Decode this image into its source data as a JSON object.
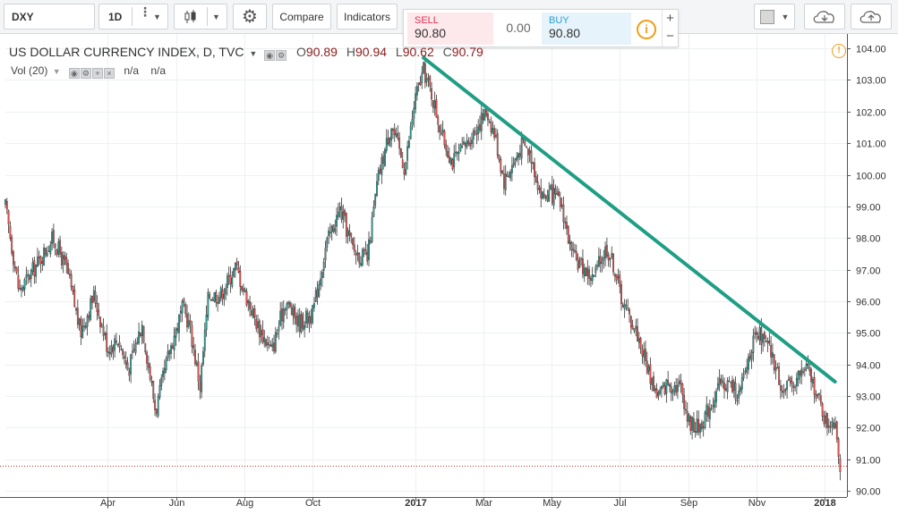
{
  "toolbar": {
    "symbol": "DXY",
    "interval": "1D",
    "compare_label": "Compare",
    "indicators_label": "Indicators"
  },
  "trade": {
    "sell_label": "SELL",
    "sell_price": "90.80",
    "spread": "0.00",
    "buy_label": "BUY",
    "buy_price": "90.80",
    "plus": "+",
    "minus": "−",
    "info": "i"
  },
  "legend": {
    "title": "US DOLLAR CURRENCY INDEX, D, TVC",
    "o_key": "O",
    "o_val": "90.89",
    "h_key": "H",
    "h_val": "90.94",
    "l_key": "L",
    "l_val": "90.62",
    "c_key": "C",
    "c_val": "90.79",
    "vol_label": "Vol (20)",
    "na1": "n/a",
    "na2": "n/a",
    "alert": "!"
  },
  "colors": {
    "up": "#26a69a",
    "down": "#ef5350",
    "wick": "#333333",
    "trendline": "#1f9e84",
    "price_line": "#c03030"
  },
  "chart_data": {
    "type": "candlestick",
    "title": "US DOLLAR CURRENCY INDEX, D, TVC",
    "y_ticks": [
      "104.00",
      "103.00",
      "102.00",
      "101.00",
      "100.00",
      "99.00",
      "98.00",
      "97.00",
      "96.00",
      "95.00",
      "94.00",
      "93.00",
      "92.00",
      "91.00",
      "90.00"
    ],
    "ylim": [
      89.8,
      104.4
    ],
    "x_ticks": [
      {
        "label": "Apr",
        "month": 3
      },
      {
        "label": "Jun",
        "month": 5
      },
      {
        "label": "Aug",
        "month": 7
      },
      {
        "label": "Oct",
        "month": 9
      },
      {
        "label": "2017",
        "month": 12,
        "bold": true
      },
      {
        "label": "Mar",
        "month": 14
      },
      {
        "label": "May",
        "month": 16
      },
      {
        "label": "Jul",
        "month": 18
      },
      {
        "label": "Sep",
        "month": 20
      },
      {
        "label": "Nov",
        "month": 22
      },
      {
        "label": "2018",
        "month": 24,
        "bold": true
      }
    ],
    "x_range_months": [
      0.0,
      24.65
    ],
    "last_price": 90.79,
    "trendline": {
      "from": [
        12.25,
        103.7
      ],
      "to": [
        24.3,
        93.45
      ]
    },
    "path_keypoints": [
      [
        0.0,
        99.0
      ],
      [
        0.4,
        96.3
      ],
      [
        1.0,
        97.3
      ],
      [
        1.4,
        98.0
      ],
      [
        1.8,
        97.0
      ],
      [
        2.2,
        95.0
      ],
      [
        2.6,
        96.2
      ],
      [
        3.0,
        94.5
      ],
      [
        3.3,
        94.8
      ],
      [
        3.6,
        93.8
      ],
      [
        4.0,
        95.3
      ],
      [
        4.4,
        92.5
      ],
      [
        4.8,
        94.4
      ],
      [
        5.2,
        95.8
      ],
      [
        5.4,
        95.2
      ],
      [
        5.7,
        93.3
      ],
      [
        5.95,
        96.2
      ],
      [
        6.3,
        96.2
      ],
      [
        6.75,
        97.1
      ],
      [
        7.0,
        96.3
      ],
      [
        7.4,
        95.2
      ],
      [
        7.8,
        94.4
      ],
      [
        8.2,
        96.0
      ],
      [
        8.6,
        95.3
      ],
      [
        9.0,
        95.6
      ],
      [
        9.4,
        97.8
      ],
      [
        9.8,
        98.9
      ],
      [
        10.2,
        97.6
      ],
      [
        10.6,
        97.3
      ],
      [
        10.9,
        99.8
      ],
      [
        11.3,
        101.6
      ],
      [
        11.7,
        100.2
      ],
      [
        12.0,
        102.4
      ],
      [
        12.25,
        103.3
      ],
      [
        12.5,
        102.5
      ],
      [
        12.8,
        101.2
      ],
      [
        13.1,
        100.4
      ],
      [
        13.4,
        100.8
      ],
      [
        13.8,
        101.5
      ],
      [
        14.1,
        102.0
      ],
      [
        14.35,
        101.2
      ],
      [
        14.6,
        99.8
      ],
      [
        14.9,
        100.4
      ],
      [
        15.15,
        101.0
      ],
      [
        15.4,
        100.6
      ],
      [
        15.7,
        99.3
      ],
      [
        16.0,
        99.4
      ],
      [
        16.3,
        99.0
      ],
      [
        16.6,
        97.4
      ],
      [
        16.9,
        97.1
      ],
      [
        17.2,
        96.7
      ],
      [
        17.6,
        97.7
      ],
      [
        17.8,
        97.2
      ],
      [
        18.1,
        95.9
      ],
      [
        18.5,
        95.0
      ],
      [
        18.8,
        93.9
      ],
      [
        19.1,
        93.0
      ],
      [
        19.4,
        93.4
      ],
      [
        19.8,
        93.3
      ],
      [
        20.0,
        92.2
      ],
      [
        20.3,
        92.0
      ],
      [
        20.6,
        92.6
      ],
      [
        20.9,
        93.3
      ],
      [
        21.2,
        93.4
      ],
      [
        21.5,
        93.0
      ],
      [
        21.85,
        94.6
      ],
      [
        22.1,
        94.9
      ],
      [
        22.4,
        94.4
      ],
      [
        22.8,
        93.1
      ],
      [
        23.2,
        93.6
      ],
      [
        23.45,
        93.9
      ],
      [
        23.7,
        93.3
      ],
      [
        24.05,
        92.1
      ],
      [
        24.3,
        92.3
      ],
      [
        24.45,
        90.85
      ]
    ]
  }
}
